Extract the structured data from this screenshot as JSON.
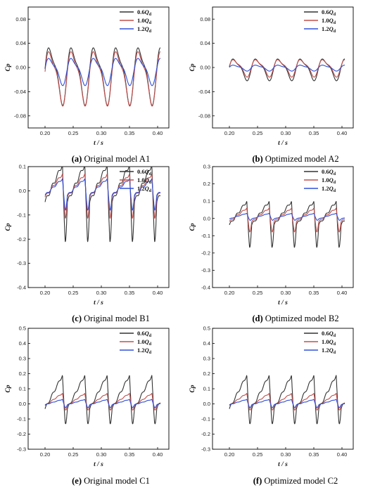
{
  "colors": {
    "s06": "#333333",
    "s10": "#c0504d",
    "s12": "#3050d8"
  },
  "panels": [
    {
      "id": "A1",
      "caption_letter": "(a)",
      "caption_text": " Original model A1"
    },
    {
      "id": "A2",
      "caption_letter": "(b)",
      "caption_text": " Optimized model A2"
    },
    {
      "id": "B1",
      "caption_letter": "(c)",
      "caption_text": " Original model B1"
    },
    {
      "id": "B2",
      "caption_letter": "(d)",
      "caption_text": " Optimized model B2"
    },
    {
      "id": "C1",
      "caption_letter": "(e)",
      "caption_text": " Original model C1"
    },
    {
      "id": "C2",
      "caption_letter": "(f)",
      "caption_text": " Optimized model C2"
    }
  ],
  "chart_data": [
    {
      "type": "line",
      "panel": "A1",
      "xlabel": "t / s",
      "ylabel": "Cp",
      "xlim": [
        0.17,
        0.42
      ],
      "ylim": [
        -0.1,
        0.1
      ],
      "xticks": [
        0.2,
        0.25,
        0.3,
        0.35,
        0.4
      ],
      "yticks": [
        -0.08,
        -0.04,
        0.0,
        0.04,
        0.08
      ],
      "legend_position": "top-right",
      "series": [
        {
          "name": "0.6Qd",
          "period": 0.0397,
          "phase": 0.0,
          "mean": 0.0,
          "peak": 0.043,
          "trough": -0.063
        },
        {
          "name": "1.0Qd",
          "period": 0.0397,
          "phase": 0.0,
          "mean": 0.0,
          "peak": 0.036,
          "trough": -0.064
        },
        {
          "name": "1.2Qd",
          "period": 0.0397,
          "phase": 0.0,
          "mean": 0.0,
          "peak": 0.02,
          "trough": -0.03
        }
      ]
    },
    {
      "type": "line",
      "panel": "A2",
      "xlabel": "t / s",
      "ylabel": "Cp",
      "xlim": [
        0.17,
        0.42
      ],
      "ylim": [
        -0.1,
        0.1
      ],
      "xticks": [
        0.2,
        0.25,
        0.3,
        0.35,
        0.4
      ],
      "yticks": [
        -0.08,
        -0.04,
        0.0,
        0.04,
        0.08
      ],
      "legend_position": "top-right",
      "series": [
        {
          "name": "0.6Qd",
          "period": 0.0397,
          "phase": 0.0,
          "mean": 0.0,
          "peak": 0.018,
          "trough": -0.022
        },
        {
          "name": "1.0Qd",
          "period": 0.0397,
          "phase": 0.0,
          "mean": 0.0,
          "peak": 0.016,
          "trough": -0.016
        },
        {
          "name": "1.2Qd",
          "period": 0.0397,
          "phase": 0.0,
          "mean": 0.0,
          "peak": 0.005,
          "trough": -0.006
        }
      ]
    },
    {
      "type": "line",
      "panel": "B1",
      "xlabel": "t / s",
      "ylabel": "Cp",
      "xlim": [
        0.17,
        0.42
      ],
      "ylim": [
        -0.4,
        0.1
      ],
      "xticks": [
        0.2,
        0.25,
        0.3,
        0.35,
        0.4
      ],
      "yticks": [
        -0.4,
        -0.3,
        -0.2,
        -0.1,
        0.0,
        0.1
      ],
      "legend_position": "top-right",
      "series": [
        {
          "name": "0.6Qd",
          "period": 0.0397,
          "phase": 0.0,
          "mean": 0.0,
          "peak": 0.11,
          "trough": -0.31
        },
        {
          "name": "1.0Qd",
          "period": 0.0397,
          "phase": 0.0,
          "mean": 0.0,
          "peak": 0.07,
          "trough": -0.17
        },
        {
          "name": "1.2Qd",
          "period": 0.0397,
          "phase": 0.0,
          "mean": 0.0,
          "peak": 0.05,
          "trough": -0.12
        }
      ]
    },
    {
      "type": "line",
      "panel": "B2",
      "xlabel": "t / s",
      "ylabel": "Cp",
      "xlim": [
        0.17,
        0.42
      ],
      "ylim": [
        -0.4,
        0.3
      ],
      "xticks": [
        0.2,
        0.25,
        0.3,
        0.35,
        0.4
      ],
      "yticks": [
        -0.4,
        -0.3,
        -0.2,
        -0.1,
        0.0,
        0.1,
        0.2,
        0.3
      ],
      "legend_position": "top-right",
      "series": [
        {
          "name": "0.6Qd",
          "period": 0.0397,
          "phase": 0.0,
          "mean": 0.0,
          "peak": 0.1,
          "trough": -0.25
        },
        {
          "name": "1.0Qd",
          "period": 0.0397,
          "phase": 0.0,
          "mean": 0.0,
          "peak": 0.06,
          "trough": -0.12
        },
        {
          "name": "1.2Qd",
          "period": 0.0397,
          "phase": 0.0,
          "mean": 0.0,
          "peak": 0.03,
          "trough": -0.02
        }
      ]
    },
    {
      "type": "line",
      "panel": "C1",
      "xlabel": "t / s",
      "ylabel": "Cp",
      "xlim": [
        0.17,
        0.42
      ],
      "ylim": [
        -0.3,
        0.5
      ],
      "xticks": [
        0.2,
        0.25,
        0.3,
        0.35,
        0.4
      ],
      "yticks": [
        -0.3,
        -0.2,
        -0.1,
        0.0,
        0.1,
        0.2,
        0.3,
        0.4,
        0.5
      ],
      "legend_position": "top-right",
      "series": [
        {
          "name": "0.6Qd",
          "period": 0.0397,
          "phase": 0.0,
          "mean": 0.0,
          "peak": 0.19,
          "trough": -0.22
        },
        {
          "name": "1.0Qd",
          "period": 0.0397,
          "phase": 0.0,
          "mean": 0.0,
          "peak": 0.07,
          "trough": -0.07
        },
        {
          "name": "1.2Qd",
          "period": 0.0397,
          "phase": 0.0,
          "mean": 0.0,
          "peak": 0.03,
          "trough": -0.04
        }
      ]
    },
    {
      "type": "line",
      "panel": "C2",
      "xlabel": "t / s",
      "ylabel": "Cp",
      "xlim": [
        0.17,
        0.42
      ],
      "ylim": [
        -0.3,
        0.5
      ],
      "xticks": [
        0.2,
        0.25,
        0.3,
        0.35,
        0.4
      ],
      "yticks": [
        -0.3,
        -0.2,
        -0.1,
        0.0,
        0.1,
        0.2,
        0.3,
        0.4,
        0.5
      ],
      "legend_position": "top-right",
      "series": [
        {
          "name": "0.6Qd",
          "period": 0.0397,
          "phase": 0.0,
          "mean": 0.0,
          "peak": 0.19,
          "trough": -0.22
        },
        {
          "name": "1.0Qd",
          "period": 0.0397,
          "phase": 0.0,
          "mean": 0.0,
          "peak": 0.07,
          "trough": -0.07
        },
        {
          "name": "1.2Qd",
          "period": 0.0397,
          "phase": 0.0,
          "mean": 0.0,
          "peak": 0.03,
          "trough": -0.04
        }
      ]
    }
  ]
}
